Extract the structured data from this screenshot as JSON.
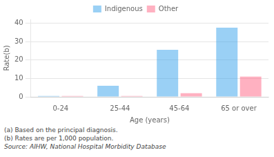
{
  "chart_data": {
    "type": "bar",
    "categories": [
      "0-24",
      "25-44",
      "45-64",
      "65 or over"
    ],
    "series": [
      {
        "name": "Indigenous",
        "values": [
          0.5,
          6.0,
          25.5,
          37.5
        ]
      },
      {
        "name": "Other",
        "values": [
          0.5,
          0.5,
          2.0,
          11.0
        ]
      }
    ],
    "xlabel": "Age (years)",
    "ylabel": "Rate(b)",
    "ylim": [
      0,
      42
    ],
    "yticks": [
      0,
      10,
      20,
      30,
      40
    ],
    "grid": true,
    "legend": "top",
    "annotations": [
      "(a) Based on the principal diagnosis.",
      "(b) Rates are per 1,000 population.",
      "Source: AIHW, National Hospital Morbidity Database"
    ]
  }
}
